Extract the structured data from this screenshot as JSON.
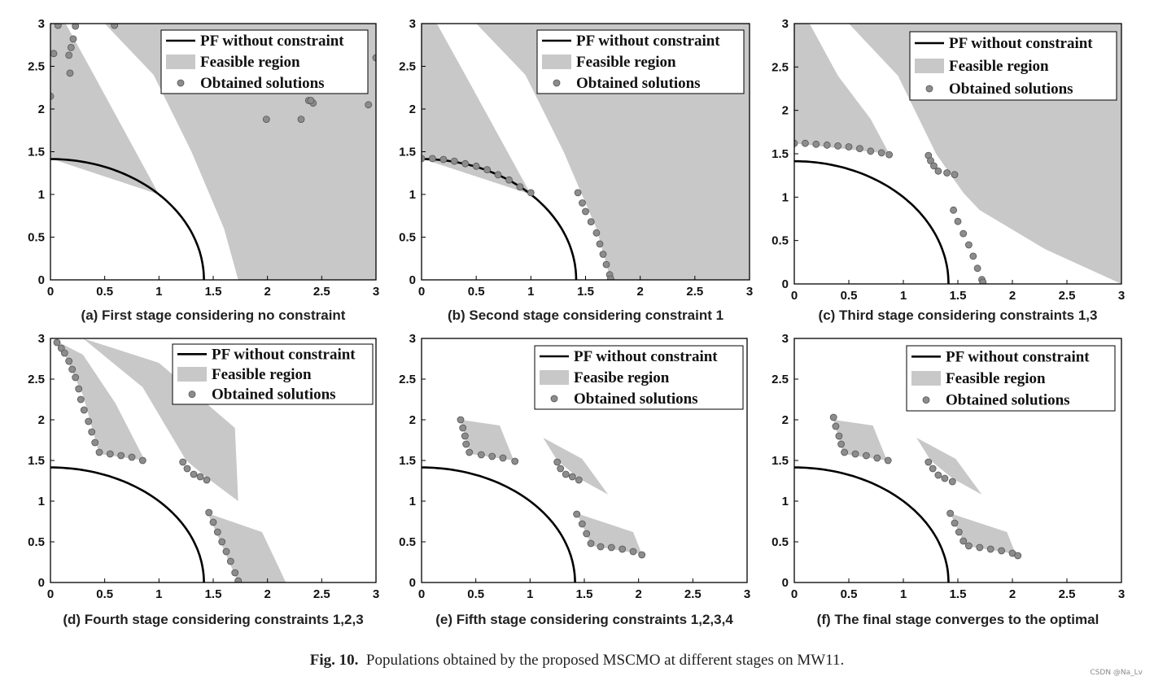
{
  "figure_caption": {
    "label": "Fig. 10.",
    "text": "Populations obtained by the proposed MSCMO at different stages on MW11."
  },
  "credit": "CSDN @Na_Lv",
  "colors": {
    "feasible": "#c8c8c8",
    "pf_line": "#000000",
    "marker_fill": "#8c8c8c",
    "marker_stroke": "#555555"
  },
  "chart_data": [
    {
      "id": "a",
      "type": "scatter",
      "caption": "(a) First stage considering no constraint",
      "xlim": [
        0,
        3
      ],
      "ylim": [
        0,
        3
      ],
      "xticks": [
        "0",
        "0.5",
        "1",
        "1.5",
        "2",
        "2.5",
        "3"
      ],
      "yticks": [
        "0",
        "0.5",
        "1",
        "1.5",
        "2",
        "2.5",
        "3"
      ],
      "legend": [
        "PF without constraint",
        "Feasible region",
        "Obtained solutions"
      ],
      "legend_position": "top-right",
      "feasible_regions": [
        [
          [
            0,
            3
          ],
          [
            0.14,
            3
          ],
          [
            0.4,
            2.4
          ],
          [
            0.7,
            1.7
          ],
          [
            1.0,
            1.0
          ],
          [
            0,
            1.42
          ]
        ],
        [
          [
            0.5,
            3
          ],
          [
            3,
            3
          ],
          [
            3,
            0
          ],
          [
            1.73,
            0
          ],
          [
            1.6,
            0.6
          ],
          [
            1.3,
            1.5
          ],
          [
            0.95,
            2.4
          ]
        ]
      ],
      "solutions": [
        [
          0.07,
          2.98
        ],
        [
          0.0,
          2.15
        ],
        [
          0.03,
          2.65
        ],
        [
          0.17,
          2.63
        ],
        [
          0.18,
          2.42
        ],
        [
          0.19,
          2.72
        ],
        [
          0.21,
          2.82
        ],
        [
          0.23,
          2.97
        ],
        [
          0.59,
          2.98
        ],
        [
          1.99,
          1.88
        ],
        [
          2.31,
          1.88
        ],
        [
          2.38,
          2.1
        ],
        [
          2.42,
          2.07
        ],
        [
          2.4,
          2.1
        ],
        [
          2.93,
          2.05
        ],
        [
          3.0,
          2.6
        ]
      ]
    },
    {
      "id": "b",
      "type": "scatter",
      "caption": "(b) Second stage considering constraint 1",
      "xlim": [
        0,
        3
      ],
      "ylim": [
        0,
        3
      ],
      "xticks": [
        "0",
        "0.5",
        "1",
        "1.5",
        "2",
        "2.5",
        "3"
      ],
      "yticks": [
        "0",
        "0.5",
        "1",
        "1.5",
        "2",
        "2.5",
        "3"
      ],
      "legend": [
        "PF without constraint",
        "Feasible region",
        "Obtained solutions"
      ],
      "legend_position": "top-right",
      "feasible_regions": [
        [
          [
            0,
            3
          ],
          [
            0.14,
            3
          ],
          [
            0.4,
            2.4
          ],
          [
            0.7,
            1.7
          ],
          [
            1.0,
            1.0
          ],
          [
            0,
            1.42
          ]
        ],
        [
          [
            0.5,
            3
          ],
          [
            3,
            3
          ],
          [
            3,
            0
          ],
          [
            1.73,
            0
          ],
          [
            1.6,
            0.6
          ],
          [
            1.3,
            1.5
          ],
          [
            0.95,
            2.4
          ]
        ]
      ],
      "solutions": [
        [
          0.0,
          1.42
        ],
        [
          0.1,
          1.42
        ],
        [
          0.2,
          1.41
        ],
        [
          0.3,
          1.39
        ],
        [
          0.4,
          1.36
        ],
        [
          0.5,
          1.33
        ],
        [
          0.6,
          1.29
        ],
        [
          0.7,
          1.23
        ],
        [
          0.8,
          1.17
        ],
        [
          0.9,
          1.09
        ],
        [
          1.0,
          1.02
        ],
        [
          1.43,
          1.02
        ],
        [
          1.47,
          0.9
        ],
        [
          1.5,
          0.8
        ],
        [
          1.55,
          0.68
        ],
        [
          1.6,
          0.55
        ],
        [
          1.63,
          0.42
        ],
        [
          1.66,
          0.3
        ],
        [
          1.69,
          0.18
        ],
        [
          1.72,
          0.06
        ],
        [
          1.73,
          0.01
        ]
      ]
    },
    {
      "id": "c",
      "type": "scatter",
      "caption": "(c) Third stage considering constraints 1,3",
      "xlim": [
        0,
        3
      ],
      "ylim": [
        0,
        3
      ],
      "xticks": [
        "0",
        "0.5",
        "1",
        "1.5",
        "2",
        "2.5",
        "3"
      ],
      "yticks": [
        "0",
        "0.5",
        "1",
        "1.5",
        "2",
        "2.5",
        "3"
      ],
      "legend": [
        "PF without constraint",
        "Feasible region",
        "Obtained solutions"
      ],
      "legend_position": "top-right",
      "feasible_regions": [
        [
          [
            0,
            3
          ],
          [
            0.14,
            3
          ],
          [
            0.4,
            2.4
          ],
          [
            0.7,
            1.9
          ],
          [
            0.87,
            1.5
          ],
          [
            0,
            1.62
          ]
        ],
        [
          [
            0.5,
            3
          ],
          [
            3,
            3
          ],
          [
            3,
            0
          ],
          [
            2.3,
            0.4
          ],
          [
            1.7,
            0.85
          ],
          [
            1.55,
            1.05
          ],
          [
            1.3,
            1.5
          ],
          [
            0.95,
            2.4
          ]
        ]
      ],
      "solutions": [
        [
          0.0,
          1.62
        ],
        [
          0.1,
          1.62
        ],
        [
          0.2,
          1.61
        ],
        [
          0.3,
          1.6
        ],
        [
          0.4,
          1.59
        ],
        [
          0.5,
          1.58
        ],
        [
          0.6,
          1.56
        ],
        [
          0.7,
          1.53
        ],
        [
          0.8,
          1.51
        ],
        [
          0.87,
          1.49
        ],
        [
          1.23,
          1.48
        ],
        [
          1.25,
          1.42
        ],
        [
          1.28,
          1.36
        ],
        [
          1.32,
          1.3
        ],
        [
          1.4,
          1.28
        ],
        [
          1.47,
          1.26
        ],
        [
          1.46,
          0.85
        ],
        [
          1.5,
          0.72
        ],
        [
          1.55,
          0.58
        ],
        [
          1.6,
          0.45
        ],
        [
          1.64,
          0.32
        ],
        [
          1.68,
          0.18
        ],
        [
          1.72,
          0.05
        ],
        [
          1.73,
          0.02
        ]
      ]
    },
    {
      "id": "d",
      "type": "scatter",
      "caption": "(d) Fourth stage considering constraints 1,2,3",
      "xlim": [
        0,
        3
      ],
      "ylim": [
        0,
        3
      ],
      "xticks": [
        "0",
        "0.5",
        "1",
        "1.5",
        "2",
        "2.5",
        "3"
      ],
      "yticks": [
        "0",
        "0.5",
        "1",
        "1.5",
        "2",
        "2.5",
        "3"
      ],
      "legend": [
        "PF without constraint",
        "Feasible region",
        "Obtained solutions"
      ],
      "legend_position": "top-right",
      "feasible_regions": [
        [
          [
            0.08,
            2.95
          ],
          [
            0.3,
            2.8
          ],
          [
            0.6,
            2.2
          ],
          [
            0.87,
            1.5
          ],
          [
            0.45,
            1.58
          ],
          [
            0.3,
            2.3
          ]
        ],
        [
          [
            0.3,
            3
          ],
          [
            1.0,
            2.7
          ],
          [
            1.7,
            1.9
          ],
          [
            1.73,
            1.0
          ],
          [
            1.45,
            1.28
          ],
          [
            1.25,
            1.5
          ],
          [
            0.85,
            2.4
          ]
        ],
        [
          [
            1.45,
            0.85
          ],
          [
            1.95,
            0.62
          ],
          [
            2.17,
            0.0
          ],
          [
            1.73,
            0.0
          ],
          [
            1.6,
            0.4
          ]
        ]
      ],
      "solutions": [
        [
          0.06,
          2.95
        ],
        [
          0.1,
          2.88
        ],
        [
          0.13,
          2.82
        ],
        [
          0.17,
          2.72
        ],
        [
          0.2,
          2.62
        ],
        [
          0.23,
          2.52
        ],
        [
          0.26,
          2.38
        ],
        [
          0.28,
          2.25
        ],
        [
          0.31,
          2.12
        ],
        [
          0.35,
          1.98
        ],
        [
          0.38,
          1.85
        ],
        [
          0.41,
          1.72
        ],
        [
          0.45,
          1.6
        ],
        [
          0.55,
          1.58
        ],
        [
          0.65,
          1.56
        ],
        [
          0.75,
          1.54
        ],
        [
          0.85,
          1.5
        ],
        [
          1.22,
          1.48
        ],
        [
          1.26,
          1.4
        ],
        [
          1.32,
          1.33
        ],
        [
          1.38,
          1.3
        ],
        [
          1.44,
          1.26
        ],
        [
          1.46,
          0.86
        ],
        [
          1.5,
          0.74
        ],
        [
          1.54,
          0.62
        ],
        [
          1.58,
          0.5
        ],
        [
          1.62,
          0.38
        ],
        [
          1.66,
          0.26
        ],
        [
          1.7,
          0.12
        ],
        [
          1.73,
          0.02
        ]
      ]
    },
    {
      "id": "e",
      "type": "scatter",
      "caption": "(e) Fifth stage considering constraints 1,2,3,4",
      "xlim": [
        0,
        3
      ],
      "ylim": [
        0,
        3
      ],
      "xticks": [
        "0",
        "0.5",
        "1",
        "1.5",
        "2",
        "2.5",
        "3"
      ],
      "yticks": [
        "0",
        "0.5",
        "1",
        "1.5",
        "2",
        "2.5",
        "3"
      ],
      "legend": [
        "PF without constraint",
        "Feasibe region",
        "Obtained solutions"
      ],
      "legend_position": "top-right",
      "feasible_regions": [
        [
          [
            0.36,
            2.0
          ],
          [
            0.72,
            1.93
          ],
          [
            0.85,
            1.5
          ],
          [
            0.45,
            1.58
          ]
        ],
        [
          [
            1.12,
            1.78
          ],
          [
            1.48,
            1.52
          ],
          [
            1.72,
            1.08
          ],
          [
            1.45,
            1.28
          ],
          [
            1.25,
            1.5
          ]
        ],
        [
          [
            1.43,
            0.85
          ],
          [
            1.95,
            0.62
          ],
          [
            2.03,
            0.35
          ],
          [
            1.57,
            0.45
          ]
        ]
      ],
      "solutions": [
        [
          0.36,
          2.0
        ],
        [
          0.38,
          1.9
        ],
        [
          0.4,
          1.8
        ],
        [
          0.41,
          1.7
        ],
        [
          0.44,
          1.6
        ],
        [
          0.55,
          1.57
        ],
        [
          0.65,
          1.55
        ],
        [
          0.75,
          1.53
        ],
        [
          0.86,
          1.49
        ],
        [
          1.25,
          1.48
        ],
        [
          1.28,
          1.4
        ],
        [
          1.33,
          1.33
        ],
        [
          1.39,
          1.3
        ],
        [
          1.45,
          1.26
        ],
        [
          1.43,
          0.84
        ],
        [
          1.48,
          0.72
        ],
        [
          1.52,
          0.6
        ],
        [
          1.56,
          0.48
        ],
        [
          1.65,
          0.44
        ],
        [
          1.75,
          0.43
        ],
        [
          1.85,
          0.41
        ],
        [
          1.95,
          0.38
        ],
        [
          2.03,
          0.34
        ]
      ]
    },
    {
      "id": "f",
      "type": "scatter",
      "caption": "(f) The final stage converges to the optimal",
      "xlim": [
        0,
        3
      ],
      "ylim": [
        0,
        3
      ],
      "xticks": [
        "0",
        "0.5",
        "1",
        "1.5",
        "2",
        "2.5",
        "3"
      ],
      "yticks": [
        "0",
        "0.5",
        "1",
        "1.5",
        "2",
        "2.5",
        "3"
      ],
      "legend": [
        "PF without constraint",
        "Feasible region",
        "Obtained solutions"
      ],
      "legend_position": "top-right",
      "feasible_regions": [
        [
          [
            0.36,
            2.0
          ],
          [
            0.72,
            1.93
          ],
          [
            0.85,
            1.5
          ],
          [
            0.45,
            1.58
          ]
        ],
        [
          [
            1.12,
            1.78
          ],
          [
            1.48,
            1.52
          ],
          [
            1.72,
            1.08
          ],
          [
            1.45,
            1.28
          ],
          [
            1.25,
            1.5
          ]
        ],
        [
          [
            1.43,
            0.85
          ],
          [
            1.95,
            0.62
          ],
          [
            2.03,
            0.35
          ],
          [
            1.57,
            0.45
          ]
        ]
      ],
      "solutions": [
        [
          0.36,
          2.03
        ],
        [
          0.38,
          1.92
        ],
        [
          0.41,
          1.8
        ],
        [
          0.43,
          1.7
        ],
        [
          0.46,
          1.6
        ],
        [
          0.56,
          1.58
        ],
        [
          0.66,
          1.56
        ],
        [
          0.76,
          1.53
        ],
        [
          0.86,
          1.5
        ],
        [
          1.23,
          1.48
        ],
        [
          1.27,
          1.4
        ],
        [
          1.32,
          1.32
        ],
        [
          1.38,
          1.28
        ],
        [
          1.45,
          1.24
        ],
        [
          1.43,
          0.85
        ],
        [
          1.47,
          0.73
        ],
        [
          1.51,
          0.62
        ],
        [
          1.55,
          0.51
        ],
        [
          1.6,
          0.45
        ],
        [
          1.7,
          0.43
        ],
        [
          1.8,
          0.41
        ],
        [
          1.9,
          0.39
        ],
        [
          2.0,
          0.36
        ],
        [
          2.05,
          0.33
        ]
      ]
    }
  ]
}
